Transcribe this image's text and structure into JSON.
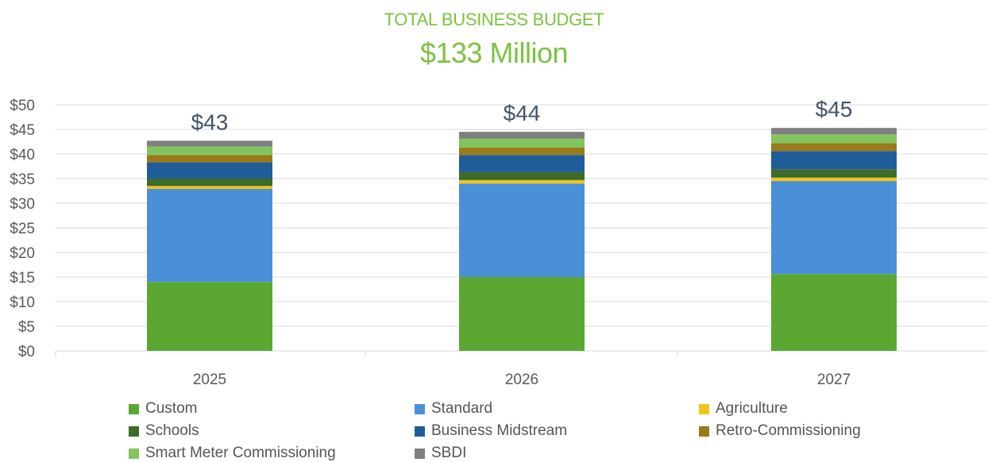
{
  "title": "TOTAL BUSINESS BUDGET",
  "subtitle": "$133 Million",
  "colors": {
    "title": "#7dc242",
    "grid": "#d9d9d9",
    "axis_text": "#595959",
    "total_label": "#44546a"
  },
  "chart_data": {
    "type": "bar",
    "stacked": true,
    "categories": [
      "2025",
      "2026",
      "2027"
    ],
    "totals": [
      "$43",
      "$44",
      "$45"
    ],
    "ylim": [
      0,
      50
    ],
    "yticks": [
      "$0",
      "$5",
      "$10",
      "$15",
      "$20",
      "$25",
      "$30",
      "$35",
      "$40",
      "$45",
      "$50"
    ],
    "grid": true,
    "legend_position": "bottom",
    "series": [
      {
        "name": "Custom",
        "color": "#5aa832",
        "values": [
          14.0,
          15.0,
          15.6
        ]
      },
      {
        "name": "Standard",
        "color": "#4a90d9",
        "values": [
          18.9,
          19.0,
          18.9
        ]
      },
      {
        "name": "Agriculture",
        "color": "#f0c419",
        "values": [
          0.6,
          0.7,
          0.7
        ]
      },
      {
        "name": "Schools",
        "color": "#3e6b2a",
        "values": [
          1.5,
          1.6,
          1.7
        ]
      },
      {
        "name": "Business Midstream",
        "color": "#1f5d9a",
        "values": [
          3.3,
          3.5,
          3.7
        ]
      },
      {
        "name": "Retro-Commissioning",
        "color": "#9a7a1a",
        "values": [
          1.5,
          1.5,
          1.6
        ]
      },
      {
        "name": "Smart Meter Commissioning",
        "color": "#82c45e",
        "values": [
          1.7,
          1.8,
          1.8
        ]
      },
      {
        "name": "SBDI",
        "color": "#7f7f7f",
        "values": [
          1.2,
          1.4,
          1.3
        ]
      }
    ]
  }
}
